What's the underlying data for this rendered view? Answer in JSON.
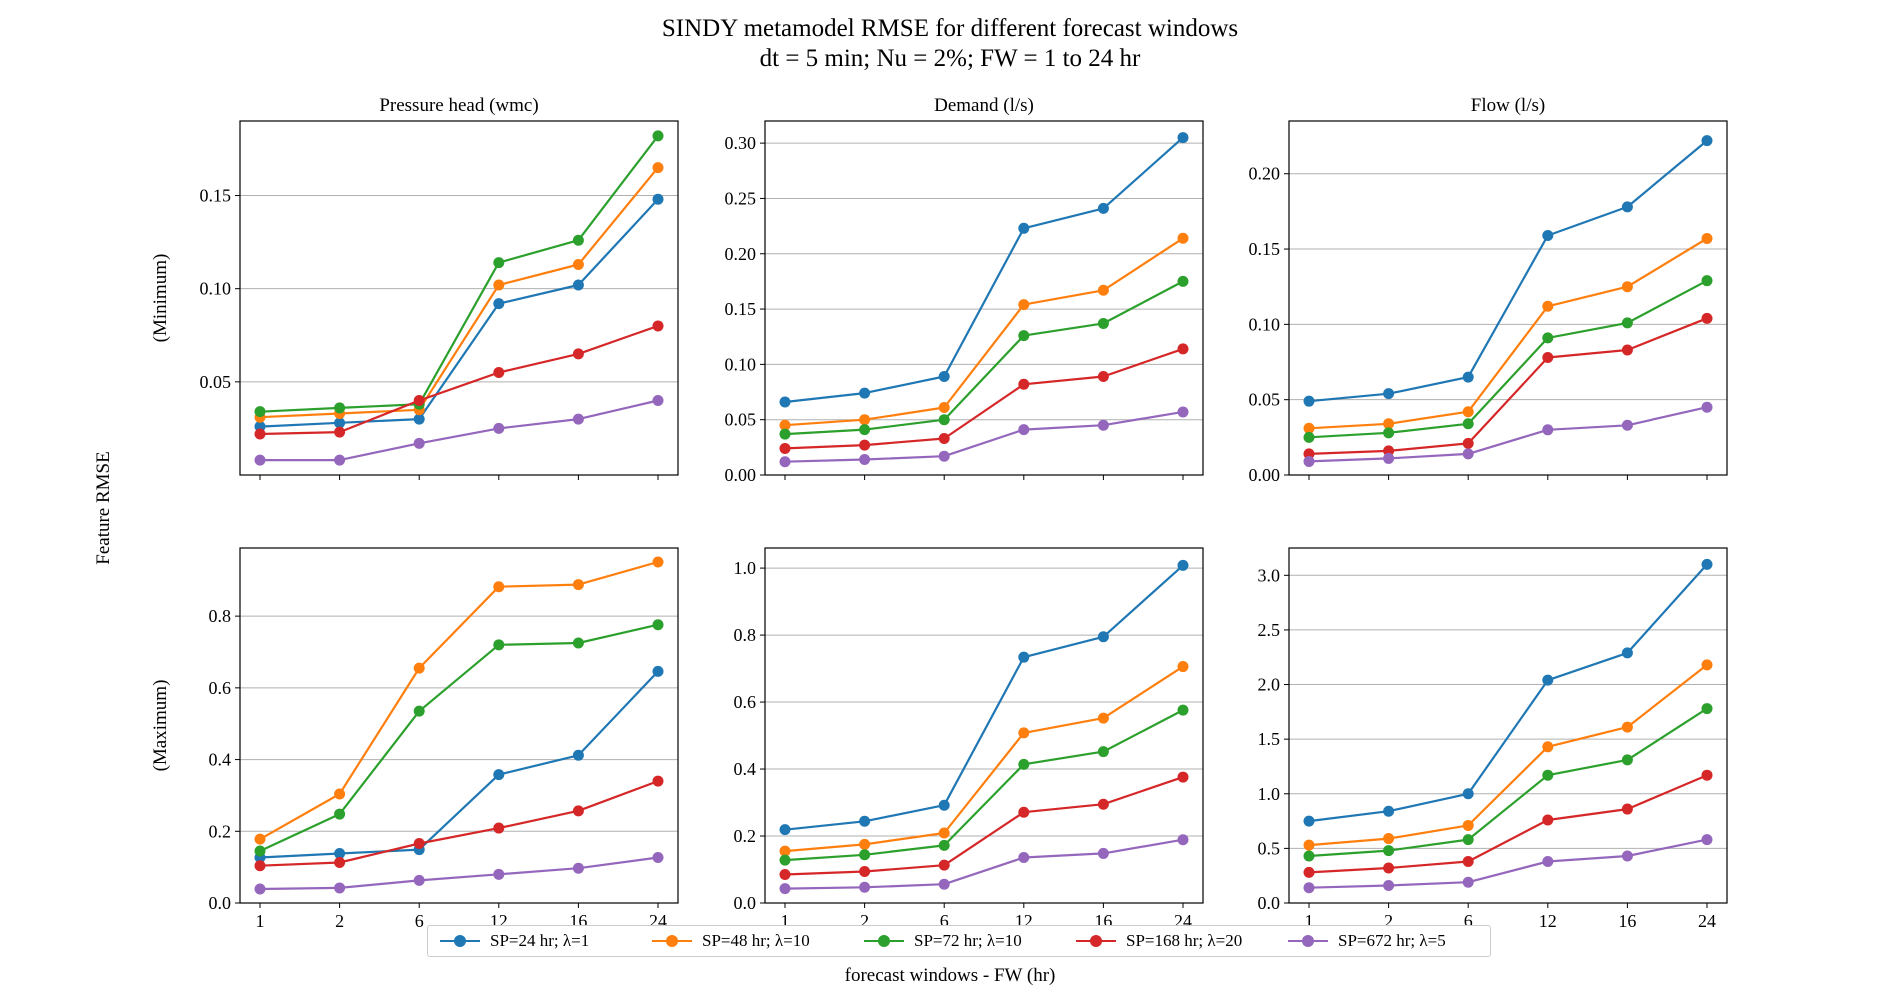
{
  "figure": {
    "title": "SINDY metamodel RMSE for different forecast windows",
    "subtitle": "dt = 5 min; Nu = 2%; FW = 1 to 24 hr",
    "ylabel": "Feature RMSE",
    "xlabel": "forecast windows - FW (hr)"
  },
  "colors": [
    "#1f77b4",
    "#ff7f0e",
    "#2ca02c",
    "#d62728",
    "#9467bd"
  ],
  "legend": {
    "position": "bottom-center",
    "entries": [
      "SP=24 hr; λ=1",
      "SP=48 hr; λ=10",
      "SP=72 hr; λ=10",
      "SP=168 hr; λ=20",
      "SP=672 hr; λ=5"
    ]
  },
  "chart_data": [
    {
      "type": "line",
      "title": "Pressure head (wmc)",
      "ylabel": "(Minimum)",
      "xlabel": "",
      "categories": [
        "1",
        "2",
        "6",
        "12",
        "16",
        "24"
      ],
      "yticks": [
        "0.05",
        "0.10",
        "0.15"
      ],
      "ylim": [
        0.0,
        0.19
      ],
      "grid": true,
      "series": [
        {
          "name": "SP=24 hr; λ=1",
          "values": [
            0.026,
            0.028,
            0.03,
            0.092,
            0.102,
            0.148
          ]
        },
        {
          "name": "SP=48 hr; λ=10",
          "values": [
            0.031,
            0.033,
            0.035,
            0.102,
            0.113,
            0.165
          ]
        },
        {
          "name": "SP=72 hr; λ=10",
          "values": [
            0.034,
            0.036,
            0.038,
            0.114,
            0.126,
            0.182
          ]
        },
        {
          "name": "SP=168 hr; λ=20",
          "values": [
            0.022,
            0.023,
            0.04,
            0.055,
            0.065,
            0.08
          ]
        },
        {
          "name": "SP=672 hr; λ=5",
          "values": [
            0.008,
            0.008,
            0.017,
            0.025,
            0.03,
            0.04
          ]
        }
      ]
    },
    {
      "type": "line",
      "title": "Demand (l/s)",
      "ylabel": "",
      "xlabel": "",
      "categories": [
        "1",
        "2",
        "6",
        "12",
        "16",
        "24"
      ],
      "yticks": [
        "0.00",
        "0.05",
        "0.10",
        "0.15",
        "0.20",
        "0.25",
        "0.30"
      ],
      "ylim": [
        0.0,
        0.32
      ],
      "grid": true,
      "series": [
        {
          "name": "SP=24 hr; λ=1",
          "values": [
            0.066,
            0.074,
            0.089,
            0.223,
            0.241,
            0.305
          ]
        },
        {
          "name": "SP=48 hr; λ=10",
          "values": [
            0.045,
            0.05,
            0.061,
            0.154,
            0.167,
            0.214
          ]
        },
        {
          "name": "SP=72 hr; λ=10",
          "values": [
            0.037,
            0.041,
            0.05,
            0.126,
            0.137,
            0.175
          ]
        },
        {
          "name": "SP=168 hr; λ=20",
          "values": [
            0.024,
            0.027,
            0.033,
            0.082,
            0.089,
            0.114
          ]
        },
        {
          "name": "SP=672 hr; λ=5",
          "values": [
            0.012,
            0.014,
            0.017,
            0.041,
            0.045,
            0.057
          ]
        }
      ]
    },
    {
      "type": "line",
      "title": "Flow (l/s)",
      "ylabel": "",
      "xlabel": "",
      "categories": [
        "1",
        "2",
        "6",
        "12",
        "16",
        "24"
      ],
      "yticks": [
        "0.00",
        "0.05",
        "0.10",
        "0.15",
        "0.20"
      ],
      "ylim": [
        0.0,
        0.235
      ],
      "grid": true,
      "series": [
        {
          "name": "SP=24 hr; λ=1",
          "values": [
            0.049,
            0.054,
            0.065,
            0.159,
            0.178,
            0.222
          ]
        },
        {
          "name": "SP=48 hr; λ=10",
          "values": [
            0.031,
            0.034,
            0.042,
            0.112,
            0.125,
            0.157
          ]
        },
        {
          "name": "SP=72 hr; λ=10",
          "values": [
            0.025,
            0.028,
            0.034,
            0.091,
            0.101,
            0.129
          ]
        },
        {
          "name": "SP=168 hr; λ=20",
          "values": [
            0.014,
            0.016,
            0.021,
            0.078,
            0.083,
            0.104
          ]
        },
        {
          "name": "SP=672 hr; λ=5",
          "values": [
            0.009,
            0.011,
            0.014,
            0.03,
            0.033,
            0.045
          ]
        }
      ]
    },
    {
      "type": "line",
      "title": "",
      "ylabel": "(Maximum)",
      "xlabel": "",
      "categories": [
        "1",
        "2",
        "6",
        "12",
        "16",
        "24"
      ],
      "yticks": [
        "0.0",
        "0.2",
        "0.4",
        "0.6",
        "0.8"
      ],
      "ylim": [
        0.0,
        0.99
      ],
      "grid": true,
      "series": [
        {
          "name": "SP=24 hr; λ=1",
          "values": [
            0.127,
            0.138,
            0.149,
            0.358,
            0.412,
            0.646
          ]
        },
        {
          "name": "SP=48 hr; λ=10",
          "values": [
            0.178,
            0.304,
            0.655,
            0.882,
            0.888,
            0.951
          ]
        },
        {
          "name": "SP=72 hr; λ=10",
          "values": [
            0.145,
            0.248,
            0.535,
            0.72,
            0.725,
            0.776
          ]
        },
        {
          "name": "SP=168 hr; λ=20",
          "values": [
            0.104,
            0.113,
            0.166,
            0.209,
            0.257,
            0.34
          ]
        },
        {
          "name": "SP=672 hr; λ=5",
          "values": [
            0.039,
            0.042,
            0.063,
            0.08,
            0.097,
            0.127
          ]
        }
      ]
    },
    {
      "type": "line",
      "title": "",
      "ylabel": "",
      "xlabel": "",
      "categories": [
        "1",
        "2",
        "6",
        "12",
        "16",
        "24"
      ],
      "yticks": [
        "0.0",
        "0.2",
        "0.4",
        "0.6",
        "0.8",
        "1.0"
      ],
      "ylim": [
        0.0,
        1.06
      ],
      "grid": true,
      "series": [
        {
          "name": "SP=24 hr; λ=1",
          "values": [
            0.219,
            0.244,
            0.292,
            0.734,
            0.795,
            1.008
          ]
        },
        {
          "name": "SP=48 hr; λ=10",
          "values": [
            0.155,
            0.175,
            0.209,
            0.508,
            0.552,
            0.706
          ]
        },
        {
          "name": "SP=72 hr; λ=10",
          "values": [
            0.128,
            0.144,
            0.172,
            0.414,
            0.452,
            0.576
          ]
        },
        {
          "name": "SP=168 hr; λ=20",
          "values": [
            0.085,
            0.094,
            0.113,
            0.271,
            0.295,
            0.376
          ]
        },
        {
          "name": "SP=672 hr; λ=5",
          "values": [
            0.043,
            0.047,
            0.056,
            0.136,
            0.148,
            0.189
          ]
        }
      ]
    },
    {
      "type": "line",
      "title": "",
      "ylabel": "",
      "xlabel": "",
      "categories": [
        "1",
        "2",
        "6",
        "12",
        "16",
        "24"
      ],
      "yticks": [
        "0.0",
        "0.5",
        "1.0",
        "1.5",
        "2.0",
        "2.5",
        "3.0"
      ],
      "ylim": [
        0.0,
        3.25
      ],
      "grid": true,
      "series": [
        {
          "name": "SP=24 hr; λ=1",
          "values": [
            0.75,
            0.84,
            1.0,
            2.04,
            2.29,
            3.1
          ]
        },
        {
          "name": "SP=48 hr; λ=10",
          "values": [
            0.53,
            0.59,
            0.71,
            1.43,
            1.61,
            2.18
          ]
        },
        {
          "name": "SP=72 hr; λ=10",
          "values": [
            0.43,
            0.48,
            0.58,
            1.17,
            1.31,
            1.78
          ]
        },
        {
          "name": "SP=168 hr; λ=20",
          "values": [
            0.28,
            0.32,
            0.38,
            0.76,
            0.86,
            1.17
          ]
        },
        {
          "name": "SP=672 hr; λ=5",
          "values": [
            0.14,
            0.16,
            0.19,
            0.38,
            0.43,
            0.58
          ]
        }
      ]
    }
  ]
}
